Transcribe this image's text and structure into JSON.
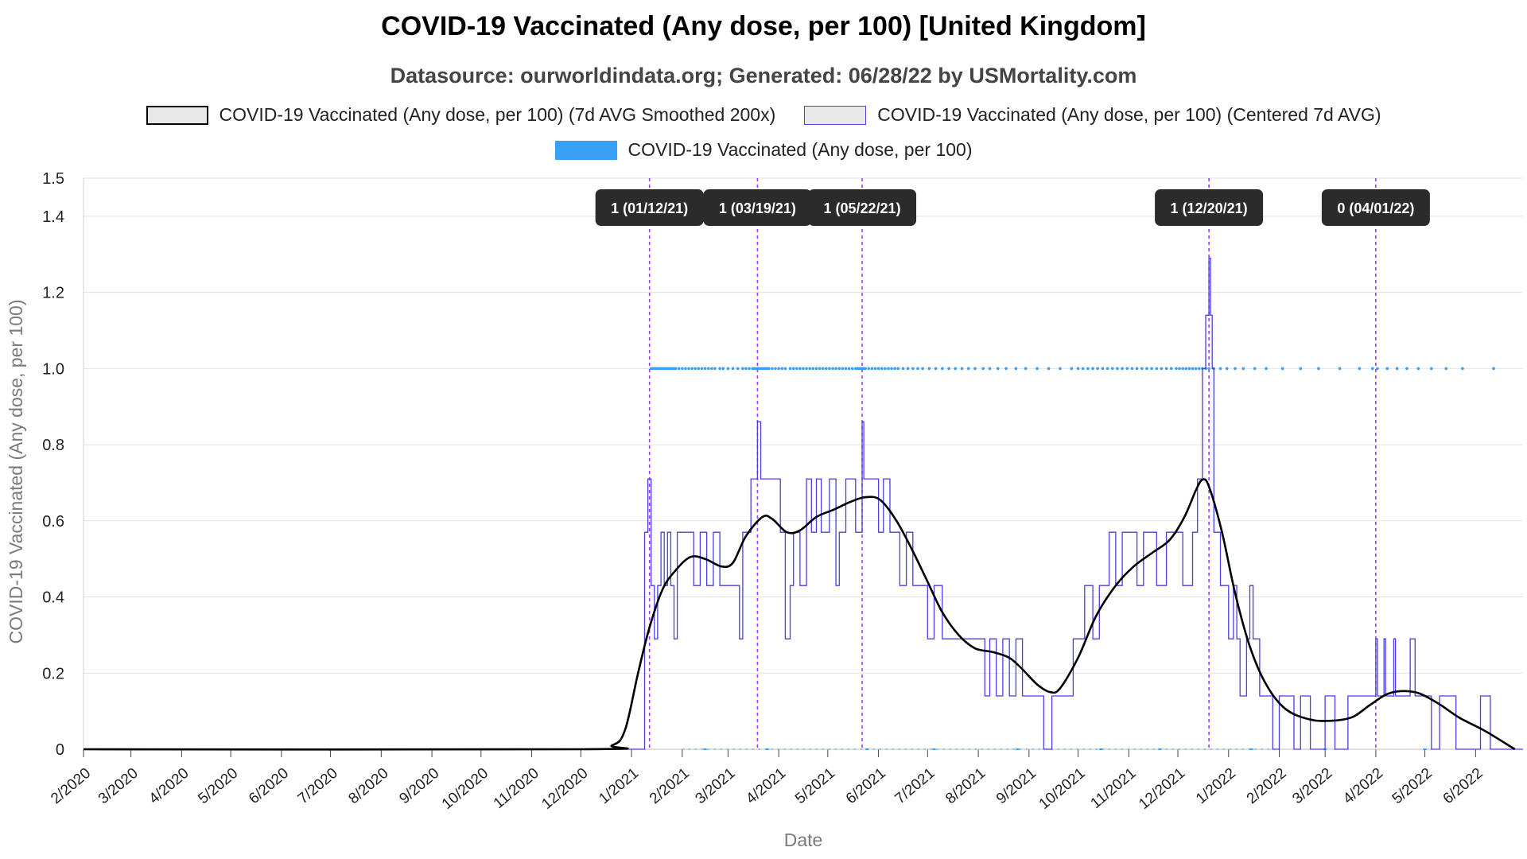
{
  "title": "COVID-19 Vaccinated (Any dose, per 100) [United Kingdom]",
  "subtitle": "Datasource: ourworldindata.org; Generated: 06/28/22 by USMortality.com",
  "legend": {
    "smoothed": "COVID-19 Vaccinated (Any dose, per 100) (7d AVG Smoothed 200x)",
    "centered": "COVID-19 Vaccinated (Any dose, per 100) (Centered 7d AVG)",
    "raw": "COVID-19 Vaccinated (Any dose, per 100)"
  },
  "colors": {
    "smoothed": "#000000",
    "centered": "#4a3fe0",
    "raw": "#3aa0f5",
    "annotation_line": "#9b3cf5",
    "annotation_box": "#2b2b2b",
    "grid": "#e2e2e2"
  },
  "chart_data": {
    "type": "line",
    "xlabel": "Date",
    "ylabel": "COVID-19 Vaccinated (Any dose, per 100)",
    "ylim": [
      0,
      1.5
    ],
    "yticks": [
      0,
      0.2,
      0.4,
      0.6,
      0.8,
      1.0,
      1.2,
      1.4,
      1.5
    ],
    "ytick_labels": [
      "0",
      "0.2",
      "0.4",
      "0.6",
      "0.8",
      "1.0",
      "1.2",
      "1.4",
      "1.5"
    ],
    "xlim": [
      "2020-02-01",
      "2022-06-30"
    ],
    "xtick_labels": [
      "2/2020",
      "3/2020",
      "4/2020",
      "5/2020",
      "6/2020",
      "7/2020",
      "8/2020",
      "9/2020",
      "10/2020",
      "11/2020",
      "12/2020",
      "1/2021",
      "2/2021",
      "3/2021",
      "4/2021",
      "5/2021",
      "6/2021",
      "7/2021",
      "8/2021",
      "9/2021",
      "10/2021",
      "11/2021",
      "12/2021",
      "1/2022",
      "2/2022",
      "3/2022",
      "4/2022",
      "5/2022",
      "6/2022"
    ],
    "grid": true,
    "legend_position": "top",
    "annotations": [
      {
        "date": "2021-01-12",
        "label": "1 (01/12/21)"
      },
      {
        "date": "2021-03-19",
        "label": "1 (03/19/21)"
      },
      {
        "date": "2021-05-22",
        "label": "1 (05/22/21)"
      },
      {
        "date": "2021-12-20",
        "label": "1 (12/20/21)"
      },
      {
        "date": "2022-04-01",
        "label": "0 (04/01/22)"
      }
    ],
    "series": [
      {
        "name": "COVID-19 Vaccinated (Any dose, per 100) (7d AVG Smoothed 200x)",
        "style": "smooth-line",
        "points": [
          [
            "2020-02-01",
            0
          ],
          [
            "2020-12-01",
            0
          ],
          [
            "2020-12-20",
            0.01
          ],
          [
            "2020-12-28",
            0.05
          ],
          [
            "2021-01-05",
            0.2
          ],
          [
            "2021-01-12",
            0.32
          ],
          [
            "2021-01-20",
            0.42
          ],
          [
            "2021-01-28",
            0.47
          ],
          [
            "2021-02-06",
            0.505
          ],
          [
            "2021-02-15",
            0.5
          ],
          [
            "2021-02-25",
            0.48
          ],
          [
            "2021-03-04",
            0.49
          ],
          [
            "2021-03-12",
            0.56
          ],
          [
            "2021-03-22",
            0.61
          ],
          [
            "2021-03-28",
            0.605
          ],
          [
            "2021-04-06",
            0.57
          ],
          [
            "2021-04-14",
            0.575
          ],
          [
            "2021-04-24",
            0.61
          ],
          [
            "2021-05-05",
            0.63
          ],
          [
            "2021-05-15",
            0.65
          ],
          [
            "2021-05-24",
            0.662
          ],
          [
            "2021-06-02",
            0.655
          ],
          [
            "2021-06-12",
            0.6
          ],
          [
            "2021-06-22",
            0.52
          ],
          [
            "2021-07-01",
            0.44
          ],
          [
            "2021-07-10",
            0.36
          ],
          [
            "2021-07-20",
            0.3
          ],
          [
            "2021-07-30",
            0.265
          ],
          [
            "2021-08-10",
            0.255
          ],
          [
            "2021-08-20",
            0.24
          ],
          [
            "2021-08-28",
            0.21
          ],
          [
            "2021-09-06",
            0.17
          ],
          [
            "2021-09-14",
            0.15
          ],
          [
            "2021-09-20",
            0.16
          ],
          [
            "2021-10-01",
            0.24
          ],
          [
            "2021-10-12",
            0.35
          ],
          [
            "2021-10-24",
            0.43
          ],
          [
            "2021-11-04",
            0.48
          ],
          [
            "2021-11-15",
            0.515
          ],
          [
            "2021-11-26",
            0.55
          ],
          [
            "2021-12-05",
            0.61
          ],
          [
            "2021-12-12",
            0.68
          ],
          [
            "2021-12-16",
            0.708
          ],
          [
            "2021-12-20",
            0.69
          ],
          [
            "2021-12-28",
            0.57
          ],
          [
            "2022-01-05",
            0.41
          ],
          [
            "2022-01-14",
            0.27
          ],
          [
            "2022-01-24",
            0.17
          ],
          [
            "2022-02-05",
            0.105
          ],
          [
            "2022-02-20",
            0.078
          ],
          [
            "2022-03-06",
            0.075
          ],
          [
            "2022-03-18",
            0.085
          ],
          [
            "2022-03-28",
            0.115
          ],
          [
            "2022-04-08",
            0.145
          ],
          [
            "2022-04-18",
            0.153
          ],
          [
            "2022-04-28",
            0.146
          ],
          [
            "2022-05-10",
            0.118
          ],
          [
            "2022-05-22",
            0.083
          ],
          [
            "2022-06-06",
            0.05
          ],
          [
            "2022-06-16",
            0.024
          ],
          [
            "2022-06-25",
            0.0
          ]
        ]
      },
      {
        "name": "COVID-19 Vaccinated (Any dose, per 100) (Centered 7d AVG)",
        "style": "step-line",
        "points": [
          [
            "2020-02-01",
            0
          ],
          [
            "2021-01-08",
            0
          ],
          [
            "2021-01-09",
            0.57
          ],
          [
            "2021-01-11",
            0.71
          ],
          [
            "2021-01-12",
            0.71
          ],
          [
            "2021-01-13",
            0.43
          ],
          [
            "2021-01-15",
            0.29
          ],
          [
            "2021-01-17",
            0.43
          ],
          [
            "2021-01-19",
            0.57
          ],
          [
            "2021-01-21",
            0.43
          ],
          [
            "2021-01-23",
            0.57
          ],
          [
            "2021-01-25",
            0.43
          ],
          [
            "2021-01-27",
            0.29
          ],
          [
            "2021-01-29",
            0.57
          ],
          [
            "2021-02-08",
            0.43
          ],
          [
            "2021-02-12",
            0.57
          ],
          [
            "2021-02-16",
            0.43
          ],
          [
            "2021-02-20",
            0.57
          ],
          [
            "2021-02-24",
            0.43
          ],
          [
            "2021-03-02",
            0.43
          ],
          [
            "2021-03-08",
            0.29
          ],
          [
            "2021-03-10",
            0.57
          ],
          [
            "2021-03-15",
            0.71
          ],
          [
            "2021-03-19",
            0.86
          ],
          [
            "2021-03-21",
            0.71
          ],
          [
            "2021-04-02",
            0.57
          ],
          [
            "2021-04-05",
            0.29
          ],
          [
            "2021-04-08",
            0.43
          ],
          [
            "2021-04-10",
            0.57
          ],
          [
            "2021-04-14",
            0.43
          ],
          [
            "2021-04-18",
            0.71
          ],
          [
            "2021-04-21",
            0.57
          ],
          [
            "2021-04-24",
            0.71
          ],
          [
            "2021-04-27",
            0.57
          ],
          [
            "2021-05-02",
            0.71
          ],
          [
            "2021-05-06",
            0.43
          ],
          [
            "2021-05-08",
            0.57
          ],
          [
            "2021-05-12",
            0.71
          ],
          [
            "2021-05-18",
            0.57
          ],
          [
            "2021-05-22",
            0.86
          ],
          [
            "2021-05-23",
            0.71
          ],
          [
            "2021-06-01",
            0.57
          ],
          [
            "2021-06-04",
            0.71
          ],
          [
            "2021-06-08",
            0.57
          ],
          [
            "2021-06-14",
            0.43
          ],
          [
            "2021-06-18",
            0.57
          ],
          [
            "2021-06-22",
            0.43
          ],
          [
            "2021-07-01",
            0.29
          ],
          [
            "2021-07-05",
            0.43
          ],
          [
            "2021-07-10",
            0.29
          ],
          [
            "2021-08-05",
            0.14
          ],
          [
            "2021-08-08",
            0.29
          ],
          [
            "2021-08-12",
            0.14
          ],
          [
            "2021-08-16",
            0.29
          ],
          [
            "2021-08-20",
            0.14
          ],
          [
            "2021-08-24",
            0.29
          ],
          [
            "2021-08-28",
            0.14
          ],
          [
            "2021-09-10",
            0.0
          ],
          [
            "2021-09-15",
            0.14
          ],
          [
            "2021-09-28",
            0.29
          ],
          [
            "2021-10-05",
            0.43
          ],
          [
            "2021-10-10",
            0.29
          ],
          [
            "2021-10-14",
            0.43
          ],
          [
            "2021-10-20",
            0.57
          ],
          [
            "2021-10-24",
            0.43
          ],
          [
            "2021-10-28",
            0.57
          ],
          [
            "2021-11-06",
            0.43
          ],
          [
            "2021-11-10",
            0.57
          ],
          [
            "2021-11-18",
            0.43
          ],
          [
            "2021-11-24",
            0.57
          ],
          [
            "2021-12-04",
            0.43
          ],
          [
            "2021-12-10",
            0.57
          ],
          [
            "2021-12-13",
            0.71
          ],
          [
            "2021-12-16",
            1.0
          ],
          [
            "2021-12-18",
            1.14
          ],
          [
            "2021-12-20",
            1.29
          ],
          [
            "2021-12-21",
            1.14
          ],
          [
            "2021-12-22",
            1.0
          ],
          [
            "2021-12-23",
            0.57
          ],
          [
            "2021-12-27",
            0.43
          ],
          [
            "2022-01-01",
            0.29
          ],
          [
            "2022-01-04",
            0.43
          ],
          [
            "2022-01-06",
            0.29
          ],
          [
            "2022-01-08",
            0.14
          ],
          [
            "2022-01-12",
            0.29
          ],
          [
            "2022-01-14",
            0.43
          ],
          [
            "2022-01-16",
            0.29
          ],
          [
            "2022-01-20",
            0.14
          ],
          [
            "2022-01-28",
            0.0
          ],
          [
            "2022-02-01",
            0.14
          ],
          [
            "2022-02-10",
            0.0
          ],
          [
            "2022-02-14",
            0.14
          ],
          [
            "2022-02-20",
            0.0
          ],
          [
            "2022-03-01",
            0.14
          ],
          [
            "2022-03-07",
            0.0
          ],
          [
            "2022-03-15",
            0.14
          ],
          [
            "2022-03-28",
            0.14
          ],
          [
            "2022-04-01",
            0.29
          ],
          [
            "2022-04-02",
            0.14
          ],
          [
            "2022-04-06",
            0.29
          ],
          [
            "2022-04-07",
            0.14
          ],
          [
            "2022-04-12",
            0.29
          ],
          [
            "2022-04-13",
            0.14
          ],
          [
            "2022-04-22",
            0.29
          ],
          [
            "2022-04-25",
            0.14
          ],
          [
            "2022-05-05",
            0.0
          ],
          [
            "2022-05-10",
            0.14
          ],
          [
            "2022-05-20",
            0.0
          ],
          [
            "2022-06-04",
            0.14
          ],
          [
            "2022-06-10",
            0.0
          ],
          [
            "2022-06-30",
            0.0
          ]
        ]
      },
      {
        "name": "COVID-19 Vaccinated (Any dose, per 100)",
        "style": "dots",
        "value": 1.0,
        "dates": [
          "2021-01-13",
          "2021-01-14",
          "2021-01-15",
          "2021-01-16",
          "2021-01-17",
          "2021-01-18",
          "2021-01-19",
          "2021-01-20",
          "2021-01-21",
          "2021-01-22",
          "2021-01-23",
          "2021-01-24",
          "2021-01-25",
          "2021-01-26",
          "2021-01-27",
          "2021-01-28",
          "2021-01-30",
          "2021-02-01",
          "2021-02-03",
          "2021-02-05",
          "2021-02-07",
          "2021-02-09",
          "2021-02-11",
          "2021-02-13",
          "2021-02-15",
          "2021-02-17",
          "2021-02-19",
          "2021-02-21",
          "2021-02-24",
          "2021-02-26",
          "2021-03-01",
          "2021-03-04",
          "2021-03-07",
          "2021-03-10",
          "2021-03-12",
          "2021-03-14",
          "2021-03-16",
          "2021-03-17",
          "2021-03-18",
          "2021-03-19",
          "2021-03-20",
          "2021-03-21",
          "2021-03-22",
          "2021-03-23",
          "2021-03-24",
          "2021-03-25",
          "2021-03-26",
          "2021-03-28",
          "2021-03-30",
          "2021-04-01",
          "2021-04-03",
          "2021-04-05",
          "2021-04-08",
          "2021-04-10",
          "2021-04-12",
          "2021-04-14",
          "2021-04-16",
          "2021-04-18",
          "2021-04-20",
          "2021-04-22",
          "2021-04-24",
          "2021-04-26",
          "2021-04-28",
          "2021-04-30",
          "2021-05-02",
          "2021-05-04",
          "2021-05-06",
          "2021-05-08",
          "2021-05-10",
          "2021-05-12",
          "2021-05-14",
          "2021-05-16",
          "2021-05-18",
          "2021-05-19",
          "2021-05-20",
          "2021-05-21",
          "2021-05-22",
          "2021-05-23",
          "2021-05-24",
          "2021-05-26",
          "2021-05-28",
          "2021-05-30",
          "2021-06-01",
          "2021-06-03",
          "2021-06-05",
          "2021-06-07",
          "2021-06-09",
          "2021-06-11",
          "2021-06-13",
          "2021-06-16",
          "2021-06-19",
          "2021-06-22",
          "2021-06-25",
          "2021-06-28",
          "2021-07-02",
          "2021-07-06",
          "2021-07-10",
          "2021-07-14",
          "2021-07-18",
          "2021-07-22",
          "2021-07-26",
          "2021-07-30",
          "2021-08-04",
          "2021-08-08",
          "2021-08-13",
          "2021-08-18",
          "2021-08-24",
          "2021-08-30",
          "2021-09-06",
          "2021-09-13",
          "2021-09-20",
          "2021-09-27",
          "2021-10-01",
          "2021-10-04",
          "2021-10-07",
          "2021-10-10",
          "2021-10-13",
          "2021-10-16",
          "2021-10-19",
          "2021-10-22",
          "2021-10-25",
          "2021-10-28",
          "2021-10-31",
          "2021-11-03",
          "2021-11-06",
          "2021-11-09",
          "2021-11-12",
          "2021-11-15",
          "2021-11-18",
          "2021-11-21",
          "2021-11-24",
          "2021-11-27",
          "2021-11-30",
          "2021-12-02",
          "2021-12-04",
          "2021-12-06",
          "2021-12-08",
          "2021-12-10",
          "2021-12-12",
          "2021-12-14",
          "2021-12-16",
          "2021-12-18",
          "2021-12-20",
          "2021-12-23",
          "2021-12-27",
          "2021-12-31",
          "2022-01-05",
          "2022-01-10",
          "2022-01-17",
          "2022-01-24",
          "2022-02-03",
          "2022-02-14",
          "2022-02-25",
          "2022-03-10",
          "2022-03-22",
          "2022-03-30",
          "2022-04-02",
          "2022-04-08",
          "2022-04-14",
          "2022-04-20",
          "2022-04-27",
          "2022-05-05",
          "2022-05-14",
          "2022-05-24",
          "2022-06-12"
        ],
        "baseline_dates": [
          "2021-02-15",
          "2021-03-25",
          "2021-05-25",
          "2021-07-05",
          "2021-08-25",
          "2021-10-15",
          "2021-11-20",
          "2022-01-15",
          "2022-03-01",
          "2022-05-01"
        ]
      }
    ]
  }
}
